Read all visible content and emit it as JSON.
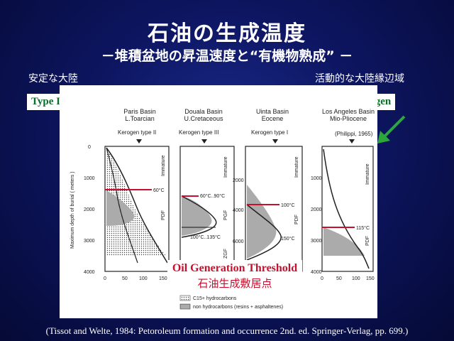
{
  "title": "石油の生成温度",
  "subtitle": "－堆積盆地の昇温速度と“有機物熟成” －",
  "left_tag": "安定な大陸",
  "left_kerogen": "Type II kerogen",
  "right_tag": "活動的な大陸縁辺域",
  "right_kerogen": "Type II  Kerogen",
  "threshold": {
    "en": "Oil Generation Threshold",
    "jp": "石油生成敷居点"
  },
  "citation": "(Tissot and Welte, 1984: Petoroleum formation and occurrence 2nd. ed. Springer-Verlag, pp. 699.)",
  "figure": {
    "ylabel": "Maximum depth of burial ( meters )",
    "y_ticks": [
      "0",
      "1000",
      "2000",
      "3000",
      "4000"
    ],
    "x_ticks": [
      "0",
      "50",
      "100",
      "150"
    ],
    "y_ticks_panel3": [
      "2000",
      "4000",
      "6000"
    ],
    "panels": [
      {
        "basin": "Paris Basin",
        "age": "L.Toarcian",
        "kerogen": "Kerogen type II",
        "temp": "60°C"
      },
      {
        "basin": "Douala Basin",
        "age": "U.Cretaceous",
        "kerogen": "Kerogen type III",
        "temp": "60°C..90°C",
        "temp2": "100°C..135°C"
      },
      {
        "basin": "Uinta Basin",
        "age": "Eocene",
        "kerogen": "Kerogen type I",
        "temp": "100°C",
        "temp2": "150°C"
      },
      {
        "basin": "Los Angeles Basin",
        "age": "Mio-Pliocene",
        "kerogen": "(Philippi, 1965)",
        "temp": "115°C"
      }
    ],
    "legend": {
      "item1": "C15+ hydrocarbons",
      "item2": "non hydrocarbons (resins + asphaltenes)"
    },
    "zone_labels": {
      "immature": "Immature",
      "pgf": "PGF",
      "pdf": "PDF",
      "zgf": "ZGF"
    },
    "accent_color": "#c8102e",
    "label_color": "#0a6e2a"
  }
}
